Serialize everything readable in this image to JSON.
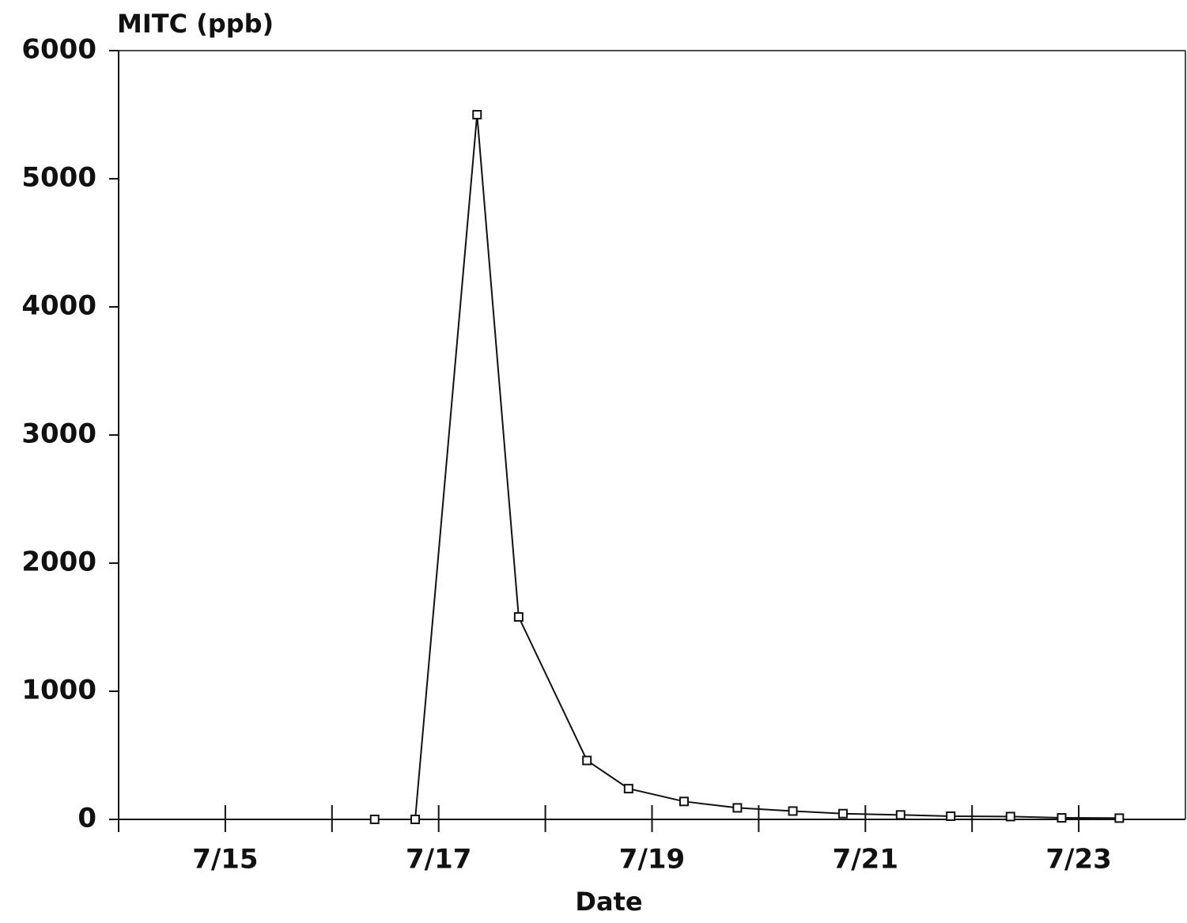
{
  "chart_data": {
    "type": "line",
    "y_label": "MITC (ppb)",
    "x_label": "Date",
    "x": [
      16.4,
      16.78,
      17.36,
      17.75,
      18.39,
      18.78,
      19.3,
      19.8,
      20.32,
      20.79,
      21.33,
      21.8,
      22.36,
      22.84,
      23.38
    ],
    "series": [
      {
        "name": "MITC",
        "color": "#111111",
        "values": [
          0,
          0,
          5500,
          1580,
          460,
          240,
          140,
          90,
          65,
          45,
          35,
          25,
          22,
          12,
          10
        ]
      }
    ],
    "xlim": [
      14,
      24
    ],
    "xticks": [
      {
        "value": 15,
        "label": "7/15"
      },
      {
        "value": 17,
        "label": "7/17"
      },
      {
        "value": 19,
        "label": "7/19"
      },
      {
        "value": 21,
        "label": "7/21"
      },
      {
        "value": 23,
        "label": "7/23"
      }
    ],
    "xminorticks": [
      16,
      18,
      20,
      22
    ],
    "ylim": [
      0,
      6000
    ],
    "yticks": [
      0,
      1000,
      2000,
      3000,
      4000,
      5000,
      6000
    ],
    "markers": "square"
  }
}
